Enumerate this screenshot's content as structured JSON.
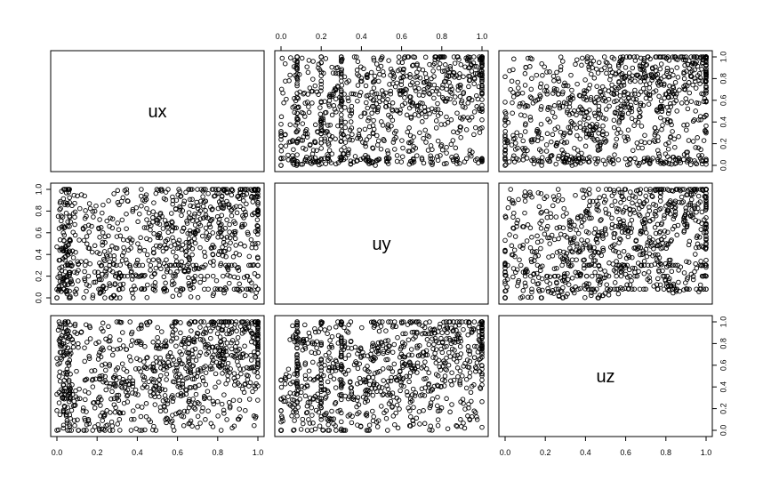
{
  "chart_data": {
    "type": "scatter",
    "layout": "pairs-matrix",
    "variables": [
      "ux",
      "uy",
      "uz"
    ],
    "axis_range": [
      0,
      1
    ],
    "ticks": [
      0.0,
      0.2,
      0.4,
      0.6,
      0.8,
      1.0
    ],
    "tick_labels": [
      "0.0",
      "0.2",
      "0.4",
      "0.6",
      "0.8",
      "1.0"
    ],
    "n_points": 900,
    "dependence": "positive, upper-tail association",
    "marker": "open circle",
    "grid": false
  }
}
